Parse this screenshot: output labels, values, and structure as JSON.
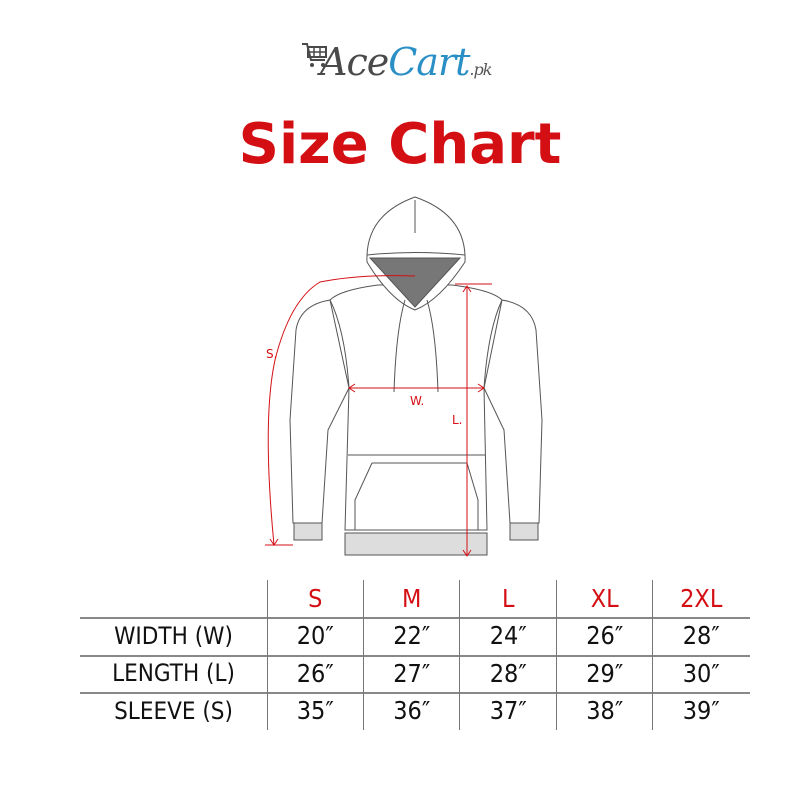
{
  "logo": {
    "brand_part1": "Ace",
    "brand_part2": "Cart",
    "suffix": ".pk",
    "icon": "shopping-cart-icon",
    "colors": {
      "ace": "#4a4a4a",
      "cart": "#2a8fc4"
    }
  },
  "title": "Size Chart",
  "accent_color": "#d40f14",
  "diagram": {
    "width_label": "W.",
    "length_label": "L.",
    "sleeve_label": "S."
  },
  "table": {
    "columns": [
      "S",
      "M",
      "L",
      "XL",
      "2XL"
    ],
    "rows": [
      {
        "label": "WIDTH (W)",
        "values": [
          "20″",
          "22″",
          "24″",
          "26″",
          "28″"
        ]
      },
      {
        "label": "LENGTH (L)",
        "values": [
          "26″",
          "27″",
          "28″",
          "29″",
          "30″"
        ]
      },
      {
        "label": "SLEEVE (S)",
        "values": [
          "35″",
          "36″",
          "37″",
          "38″",
          "39″"
        ]
      }
    ]
  }
}
